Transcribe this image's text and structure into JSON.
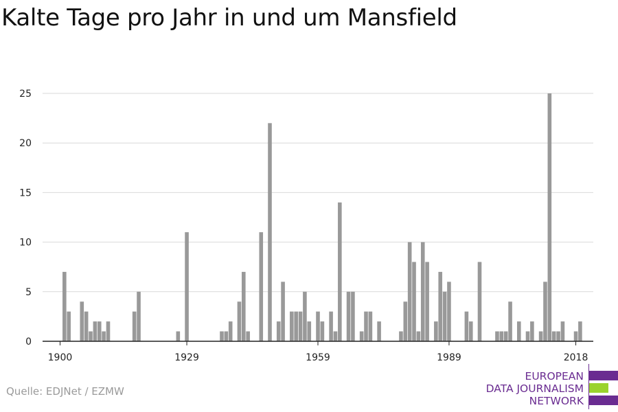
{
  "title": "Kalte Tage pro Jahr in und um Mansfield",
  "source": "Quelle: EDJNet / EZMW",
  "logo": {
    "lines": [
      "EUROPEAN",
      "DATA JOURNALISM",
      "NETWORK"
    ],
    "colors": {
      "purple": "#6a2c91",
      "green": "#9bd32e"
    }
  },
  "chart_data": {
    "type": "bar",
    "title": "Kalte Tage pro Jahr in und um Mansfield",
    "xlabel": "",
    "ylabel": "",
    "bar_color": "#999999",
    "grid": true,
    "ylim": [
      0,
      25
    ],
    "yticks": [
      0,
      5,
      10,
      15,
      20,
      25
    ],
    "xticks": [
      1900,
      1929,
      1959,
      1989,
      2018
    ],
    "xlim": [
      1896,
      2022
    ],
    "x": [
      1901,
      1902,
      1903,
      1904,
      1905,
      1906,
      1907,
      1908,
      1909,
      1910,
      1911,
      1912,
      1913,
      1914,
      1915,
      1916,
      1917,
      1918,
      1919,
      1920,
      1921,
      1922,
      1923,
      1924,
      1925,
      1926,
      1927,
      1928,
      1929,
      1930,
      1931,
      1932,
      1933,
      1934,
      1935,
      1936,
      1937,
      1938,
      1939,
      1940,
      1941,
      1942,
      1943,
      1944,
      1945,
      1946,
      1947,
      1948,
      1949,
      1950,
      1951,
      1952,
      1953,
      1954,
      1955,
      1956,
      1957,
      1958,
      1959,
      1960,
      1961,
      1962,
      1963,
      1964,
      1965,
      1966,
      1967,
      1968,
      1969,
      1970,
      1971,
      1972,
      1973,
      1974,
      1975,
      1976,
      1977,
      1978,
      1979,
      1980,
      1981,
      1982,
      1983,
      1984,
      1985,
      1986,
      1987,
      1988,
      1989,
      1990,
      1991,
      1992,
      1993,
      1994,
      1995,
      1996,
      1997,
      1998,
      1999,
      2000,
      2001,
      2002,
      2003,
      2004,
      2005,
      2006,
      2007,
      2008,
      2009,
      2010,
      2011,
      2012,
      2013,
      2014,
      2015,
      2016,
      2017,
      2018,
      2019
    ],
    "values": [
      7,
      3,
      0,
      0,
      4,
      3,
      1,
      2,
      2,
      1,
      2,
      0,
      0,
      0,
      0,
      0,
      3,
      5,
      0,
      0,
      0,
      0,
      0,
      0,
      0,
      0,
      1,
      0,
      11,
      0,
      0,
      0,
      0,
      0,
      0,
      0,
      1,
      1,
      2,
      0,
      4,
      7,
      1,
      0,
      0,
      11,
      0,
      22,
      0,
      2,
      6,
      0,
      3,
      3,
      3,
      5,
      2,
      0,
      3,
      2,
      0,
      3,
      1,
      14,
      0,
      5,
      5,
      0,
      1,
      3,
      3,
      0,
      2,
      0,
      0,
      0,
      0,
      1,
      4,
      10,
      8,
      1,
      10,
      8,
      0,
      2,
      7,
      5,
      6,
      0,
      0,
      0,
      3,
      2,
      0,
      8,
      0,
      0,
      0,
      1,
      1,
      1,
      4,
      0,
      2,
      0,
      1,
      2,
      0,
      1,
      6,
      25,
      1,
      1,
      2,
      0,
      0,
      1,
      2
    ]
  }
}
